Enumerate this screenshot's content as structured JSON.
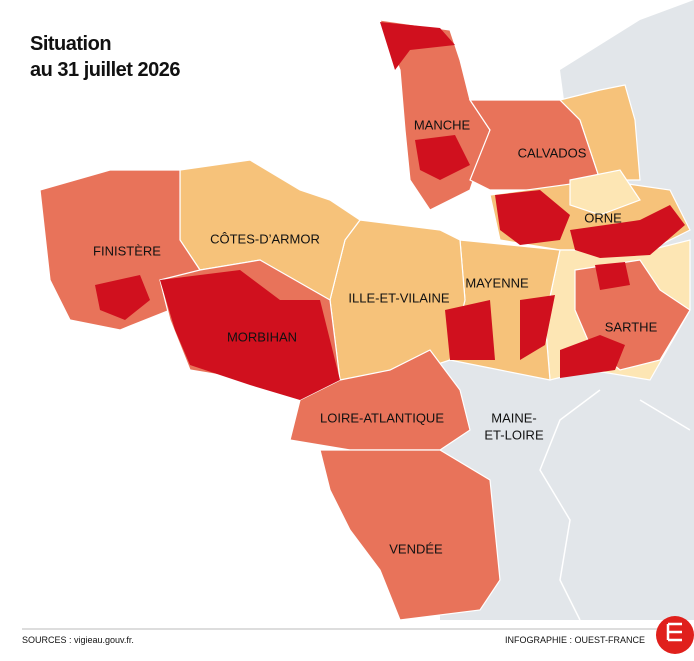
{
  "title": {
    "line1": "Situation",
    "line2": "au 31 juillet 2026"
  },
  "labels": [
    "MANCHE",
    "CALVADOS",
    "ORNE",
    "FINISTÈRE",
    "CÔTES-D’ARMOR",
    "ILLE-ET-VILAINE",
    "MAYENNE",
    "SARTHE",
    "MORBIHAN",
    "LOIRE-ATLANTIQUE",
    "MAINE-",
    "ET-LOIRE",
    "VENDÉE"
  ],
  "footer": {
    "sources": "SOURCES : vigieau.gouv.fr.",
    "credit": "INFOGRAPHIE : OUEST-FRANCE"
  }
}
